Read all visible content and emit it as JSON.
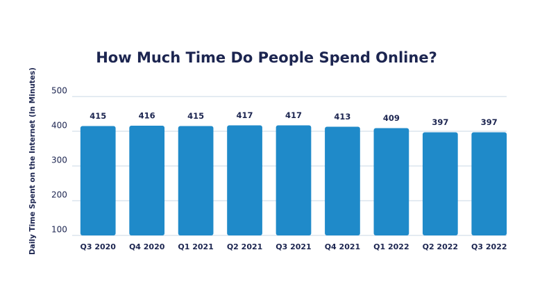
{
  "chart_data": {
    "type": "bar",
    "title": "How Much Time Do People Spend Online?",
    "y_label": "Daily Time Spent on the Internet (In Minutes)",
    "categories": [
      "Q3 2020",
      "Q4 2020",
      "Q1 2021",
      "Q2 2021",
      "Q3 2021",
      "Q4 2021",
      "Q1 2022",
      "Q2 2022",
      "Q3 2022"
    ],
    "values": [
      415,
      416,
      415,
      417,
      417,
      413,
      409,
      397,
      397
    ],
    "color": "#1f8ac9",
    "ylim": [
      100,
      500
    ],
    "yticks": [
      100,
      200,
      300,
      400,
      500
    ],
    "grid": true
  }
}
